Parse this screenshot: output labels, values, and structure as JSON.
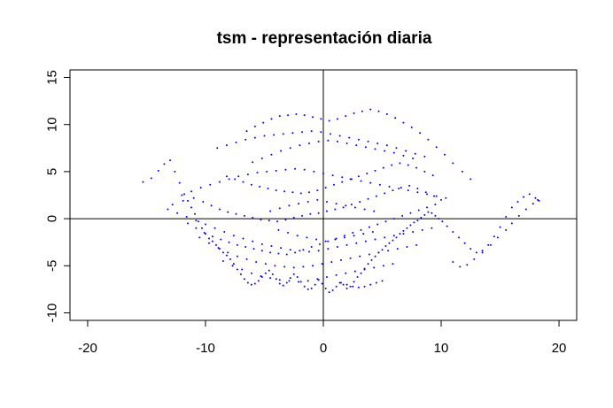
{
  "chart_data": {
    "type": "scatter",
    "title": "tsm - representación diaria",
    "xlabel": "",
    "ylabel": "",
    "xlim": [
      -21.5,
      21.5
    ],
    "ylim": [
      -10.8,
      15.8
    ],
    "x_ticks": [
      -20,
      -10,
      0,
      10,
      20
    ],
    "y_ticks": [
      -10,
      -5,
      0,
      5,
      10,
      15
    ],
    "reference_lines": {
      "h": 0,
      "v": 0
    },
    "grid": false,
    "point_color": "#0000ff",
    "series": [
      {
        "x": [
          -15.3,
          -14.6,
          -14.0,
          -13.5,
          -13.0,
          -12.6,
          -12.2,
          -11.8,
          -11.5,
          -11.2,
          -10.9,
          -10.6,
          -10.3,
          -10.0,
          -9.7,
          -9.4,
          -9.1,
          -8.8,
          -8.5,
          -8.2,
          -7.9,
          -7.6,
          -7.3,
          -7.0,
          -6.7,
          -6.4,
          -6.1,
          -5.8,
          -5.5,
          -5.2,
          -4.9,
          -4.6,
          -4.3,
          -4.0,
          -3.7,
          -3.4,
          -3.1,
          -2.8,
          -2.5,
          -2.2,
          -1.9,
          -1.6,
          -1.3,
          -1.0,
          -0.7,
          -0.4,
          -0.1,
          0.2,
          0.5,
          0.8,
          1.1,
          1.4,
          1.7,
          2.0,
          2.3,
          2.6,
          2.9,
          3.2,
          3.5,
          3.8,
          4.1,
          4.4,
          4.7,
          5.0,
          5.3,
          5.6,
          5.9,
          6.2,
          6.5,
          6.8,
          7.1,
          7.4,
          7.7,
          8.0,
          8.3,
          8.6,
          8.9,
          9.2,
          9.5,
          9.8,
          10.1,
          10.5,
          11.0,
          11.5,
          12.0,
          12.5,
          13.0,
          13.5,
          14.0,
          14.5,
          15.0,
          15.5,
          16.0,
          16.5,
          17.0,
          17.5,
          18.0,
          18.3,
          -12.8,
          -11.9,
          -11.0,
          -10.2,
          -9.5,
          -8.8,
          -8.1,
          -7.4,
          -6.7,
          -6.0,
          -5.3,
          -4.6,
          -3.9,
          -3.2,
          -2.5,
          -1.8,
          -1.1,
          -0.4,
          0.3,
          1.0,
          1.7,
          2.4,
          3.1,
          3.8,
          4.5,
          5.2,
          5.9,
          6.6,
          7.3,
          8.0,
          8.7,
          9.4,
          10.0,
          -11.5,
          -10.8,
          -10.1,
          -9.4,
          -8.7,
          -8.0,
          -7.3,
          -6.6,
          -5.9,
          -5.2,
          -4.5,
          -3.8,
          -3.1,
          -2.4,
          -1.7,
          -1.0,
          -0.3,
          0.4,
          1.1,
          1.8,
          2.5,
          3.2,
          3.9,
          4.6,
          5.3,
          6.0,
          6.7,
          7.4,
          8.1,
          8.8,
          9.5,
          -8.2,
          -7.5,
          -6.8,
          -6.1,
          -5.4,
          -4.7,
          -4.0,
          -3.3,
          -2.6,
          -1.9,
          -1.2,
          -0.5,
          0.2,
          0.9,
          1.6,
          2.3,
          3.0,
          3.7,
          4.4,
          5.1,
          5.8,
          6.5,
          7.2,
          7.9,
          8.6,
          9.3,
          -6.5,
          -5.8,
          -5.1,
          -4.4,
          -3.7,
          -3.0,
          -2.3,
          -1.6,
          -0.9,
          -0.2,
          0.5,
          1.2,
          1.9,
          2.6,
          3.3,
          4.0,
          4.7,
          5.4,
          6.1,
          6.8,
          7.5,
          8.2,
          8.9,
          9.6,
          10.3,
          11.0,
          11.8,
          12.5,
          -9.0,
          -8.2,
          -7.4,
          -6.6,
          -5.8,
          -5.0,
          -4.2,
          -3.4,
          -2.6,
          -1.8,
          -1.0,
          -0.2,
          0.6,
          1.4,
          2.2,
          3.0,
          3.8,
          4.6,
          5.4,
          6.2,
          7.0,
          7.8,
          8.6,
          -12.0,
          -11.2,
          -10.4,
          -9.6,
          -8.8,
          -8.0,
          -7.2,
          -6.4,
          -5.6,
          -4.8,
          -4.0,
          -3.2,
          -2.4,
          -1.6,
          -0.8,
          0.0,
          0.8,
          1.6,
          2.4,
          3.2,
          4.0,
          4.8,
          5.6,
          6.4,
          7.2,
          8.0,
          8.8,
          9.6,
          10.4,
          -13.2,
          -12.4,
          -11.6,
          -10.8,
          -10.0,
          -9.2,
          -8.4,
          -7.6,
          -6.8,
          -6.0,
          -5.2,
          -4.4,
          -3.6,
          -2.8,
          -2.0,
          -1.2,
          -0.4,
          0.4,
          1.2,
          2.0,
          2.8,
          3.6,
          4.4,
          5.2,
          6.0,
          6.8,
          7.6,
          8.4,
          9.2,
          -10.5,
          -9.7,
          -8.9,
          -8.1,
          -7.3,
          -6.5,
          -5.7,
          -4.9,
          -4.1,
          -3.3,
          -2.5,
          -1.7,
          -0.9,
          -0.1,
          0.7,
          1.5,
          2.3,
          3.1,
          3.9,
          4.7,
          5.5,
          6.3,
          7.1,
          7.9,
          -8.5,
          -7.7,
          -6.9,
          -6.1,
          -5.3,
          -4.5,
          -3.7,
          -2.9,
          -2.1,
          -1.3,
          -0.5,
          0.3,
          1.1,
          1.9,
          2.7,
          3.5,
          4.3,
          5.1,
          5.9,
          -6.0,
          -5.2,
          -4.4,
          -3.6,
          -2.8,
          -2.0,
          -1.2,
          -0.4,
          0.4,
          1.2,
          2.0,
          2.8,
          3.6,
          4.4,
          5.2,
          6.0,
          6.8,
          7.6,
          -4.5,
          -3.7,
          -2.9,
          -2.1,
          -1.3,
          -0.5,
          0.3,
          1.1,
          1.9,
          2.7,
          3.5,
          4.3,
          -3.8,
          -3.0,
          -2.2,
          -1.4,
          -0.6,
          0.2,
          1.0,
          1.8,
          2.6,
          3.4,
          4.2,
          1.5,
          2.0,
          2.5,
          3.0,
          3.5,
          4.0,
          4.5,
          5.0,
          16.0,
          16.6,
          17.2,
          17.8,
          18.2,
          15.5,
          14.8,
          14.2,
          13.5,
          12.8,
          12.2,
          11.6,
          11.0
        ],
        "y": [
          3.9,
          4.3,
          5.1,
          5.8,
          6.2,
          5.0,
          3.8,
          2.6,
          1.9,
          1.2,
          0.5,
          -0.3,
          -1.0,
          -1.6,
          -2.1,
          -2.4,
          -2.8,
          -3.2,
          -3.6,
          -3.9,
          -4.3,
          -4.8,
          -5.4,
          -5.9,
          -6.4,
          -6.8,
          -7.0,
          -6.9,
          -6.6,
          -6.2,
          -5.8,
          -5.5,
          -5.9,
          -6.4,
          -6.9,
          -7.1,
          -6.8,
          -6.3,
          -5.9,
          -6.2,
          -6.7,
          -7.2,
          -7.5,
          -7.4,
          -7.0,
          -6.5,
          -6.9,
          -7.4,
          -7.8,
          -7.6,
          -7.2,
          -6.8,
          -7.0,
          -7.4,
          -7.2,
          -6.7,
          -6.2,
          -5.8,
          -5.3,
          -4.8,
          -4.4,
          -4.0,
          -3.6,
          -3.3,
          -2.9,
          -2.6,
          -2.3,
          -2.0,
          -1.6,
          -1.3,
          -1.0,
          -0.7,
          -0.4,
          -0.2,
          0.1,
          0.4,
          0.7,
          0.6,
          0.3,
          0.0,
          -0.3,
          -0.8,
          -1.4,
          -2.0,
          -2.6,
          -3.2,
          -3.6,
          -3.4,
          -2.8,
          -1.9,
          -0.9,
          0.2,
          1.2,
          1.8,
          2.3,
          2.6,
          2.2,
          1.9,
          1.5,
          1.9,
          2.2,
          1.8,
          1.4,
          1.0,
          0.7,
          0.5,
          0.3,
          0.1,
          -0.1,
          -0.2,
          -0.3,
          -0.1,
          0.1,
          0.3,
          0.5,
          0.6,
          0.8,
          1.0,
          1.2,
          1.5,
          1.8,
          2.1,
          2.4,
          2.7,
          3.0,
          3.3,
          3.5,
          3.2,
          2.8,
          2.4,
          2.0,
          -0.5,
          -1.0,
          -1.5,
          -1.9,
          -2.2,
          -2.5,
          -2.8,
          -3.0,
          -3.2,
          -3.4,
          -3.6,
          -3.7,
          -3.8,
          -3.6,
          -3.3,
          -3.0,
          -2.7,
          -2.4,
          -2.1,
          -1.8,
          -1.5,
          -1.2,
          -0.9,
          -0.6,
          -0.3,
          0.0,
          0.3,
          0.6,
          0.9,
          1.2,
          1.5,
          4.5,
          4.2,
          3.9,
          3.6,
          3.4,
          3.2,
          3.0,
          2.9,
          2.8,
          2.7,
          2.8,
          3.0,
          3.3,
          3.6,
          3.9,
          4.2,
          4.5,
          4.8,
          5.1,
          5.4,
          5.7,
          5.9,
          5.7,
          5.4,
          5.0,
          4.6,
          9.3,
          9.8,
          10.2,
          10.6,
          10.9,
          11.0,
          11.1,
          11.0,
          10.8,
          10.6,
          10.4,
          10.6,
          10.9,
          11.2,
          11.4,
          11.6,
          11.4,
          11.1,
          10.7,
          10.2,
          9.7,
          9.1,
          8.4,
          7.6,
          6.8,
          5.9,
          5.0,
          4.2,
          7.5,
          7.8,
          8.1,
          8.4,
          8.6,
          8.8,
          8.9,
          9.0,
          9.1,
          9.2,
          9.3,
          9.2,
          9.0,
          8.8,
          8.6,
          8.4,
          8.2,
          8.0,
          7.8,
          7.5,
          7.2,
          6.9,
          6.6,
          2.5,
          2.9,
          3.3,
          3.6,
          3.9,
          4.2,
          4.5,
          4.7,
          4.9,
          5.0,
          5.1,
          5.2,
          5.3,
          5.2,
          5.0,
          4.8,
          4.6,
          4.4,
          4.2,
          4.0,
          3.8,
          3.6,
          3.4,
          3.2,
          3.0,
          2.8,
          2.6,
          2.4,
          2.2,
          1.0,
          0.6,
          0.2,
          -0.2,
          -0.6,
          -1.0,
          -1.4,
          -1.8,
          -2.1,
          -2.4,
          -2.7,
          -2.9,
          -3.1,
          -3.3,
          -3.4,
          -3.5,
          -3.4,
          -3.2,
          -3.0,
          -2.8,
          -2.6,
          -2.4,
          -2.2,
          -2.0,
          -1.8,
          -1.6,
          -1.4,
          -1.2,
          -1.0,
          -2.0,
          -2.6,
          -3.1,
          -3.6,
          -4.0,
          -4.3,
          -4.6,
          -4.8,
          -5.0,
          -5.1,
          -5.2,
          -5.1,
          -5.0,
          -4.8,
          -4.6,
          -4.4,
          -4.2,
          -4.0,
          -3.8,
          -3.6,
          -3.4,
          -3.2,
          -3.0,
          -2.8,
          -4.5,
          -5.0,
          -5.4,
          -5.8,
          -6.1,
          -6.3,
          -6.5,
          -6.6,
          -6.7,
          -6.6,
          -6.4,
          -6.2,
          -6.0,
          -5.8,
          -5.6,
          -5.4,
          -5.2,
          -5.0,
          -4.8,
          6.0,
          6.4,
          6.8,
          7.2,
          7.5,
          7.8,
          8.0,
          8.2,
          8.3,
          8.2,
          8.0,
          7.8,
          7.6,
          7.4,
          7.2,
          7.0,
          6.7,
          6.4,
          0.8,
          1.1,
          1.4,
          1.6,
          1.8,
          2.0,
          1.8,
          1.6,
          1.4,
          1.2,
          1.0,
          0.8,
          -1.2,
          -1.5,
          -1.8,
          -2.0,
          -2.2,
          -2.4,
          -2.2,
          -2.0,
          -1.8,
          -1.6,
          -1.4,
          -6.8,
          -7.0,
          -7.2,
          -7.3,
          -7.2,
          -7.0,
          -6.8,
          -6.6,
          -0.5,
          0.3,
          1.0,
          1.6,
          2.0,
          -1.2,
          -2.0,
          -2.8,
          -3.6,
          -4.3,
          -4.9,
          -5.1,
          -4.6
        ]
      }
    ]
  }
}
